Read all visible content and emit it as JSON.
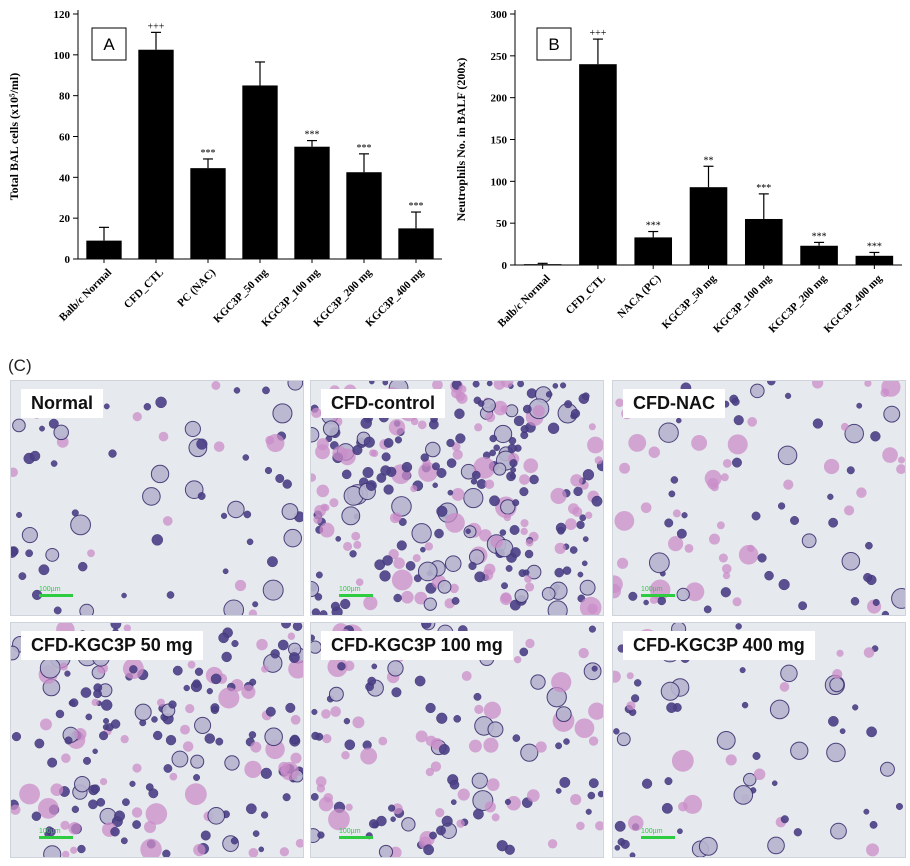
{
  "chart_data": [
    {
      "id": "A",
      "type": "bar",
      "panel_label": "A",
      "ylabel": "Total BAL cells (x10⁵/ml)",
      "ylim": [
        0,
        120
      ],
      "yticks": [
        0,
        20,
        40,
        60,
        80,
        100,
        120
      ],
      "categories": [
        "Balb/c Normal",
        "CFD_CTL",
        "PC (NAC)",
        "KGC3P_50 mg",
        "KGC3P_100 mg",
        "KGC3P_200 mg",
        "KGC3P_400 mg"
      ],
      "values": [
        9,
        102.5,
        44.5,
        85,
        55,
        42.5,
        15
      ],
      "errors": [
        6.5,
        8.5,
        4.5,
        11.5,
        3,
        9,
        8
      ],
      "annotations": [
        "",
        "+++",
        "***",
        "",
        "***",
        "***",
        "***"
      ]
    },
    {
      "id": "B",
      "type": "bar",
      "panel_label": "B",
      "ylabel": "Neutrophils No. in BALF (200x)",
      "ylim": [
        0,
        300
      ],
      "yticks": [
        0,
        50,
        100,
        150,
        200,
        250,
        300
      ],
      "categories": [
        "Balb/c Normal",
        "CFD_CTL",
        "NACA (PC)",
        "KGC3P_50 mg",
        "KGC3P_100 mg",
        "KGC3P_200 mg",
        "KGC3P_400 mg"
      ],
      "values": [
        1,
        240,
        33,
        93,
        55,
        23,
        11
      ],
      "errors": [
        1,
        30,
        7,
        25,
        30,
        4,
        4
      ],
      "annotations": [
        "",
        "+++",
        "***",
        "**",
        "***",
        "***",
        "***"
      ]
    }
  ],
  "panel_c": {
    "label": "(C)",
    "images": [
      {
        "label": "Normal",
        "scale": "100µm",
        "density": 70,
        "pink": 0.12
      },
      {
        "label": "CFD-control",
        "scale": "100µm",
        "density": 300,
        "pink": 0.35
      },
      {
        "label": "CFD-NAC",
        "scale": "100µm",
        "density": 95,
        "pink": 0.5
      },
      {
        "label": "CFD-KGC3P  50 mg",
        "scale": "100µm",
        "density": 200,
        "pink": 0.3
      },
      {
        "label": "CFD-KGC3P  100 mg",
        "scale": "100µm",
        "density": 140,
        "pink": 0.4
      },
      {
        "label": "CFD-KGC3P  400 mg",
        "scale": "100µm",
        "density": 80,
        "pink": 0.3
      }
    ]
  }
}
